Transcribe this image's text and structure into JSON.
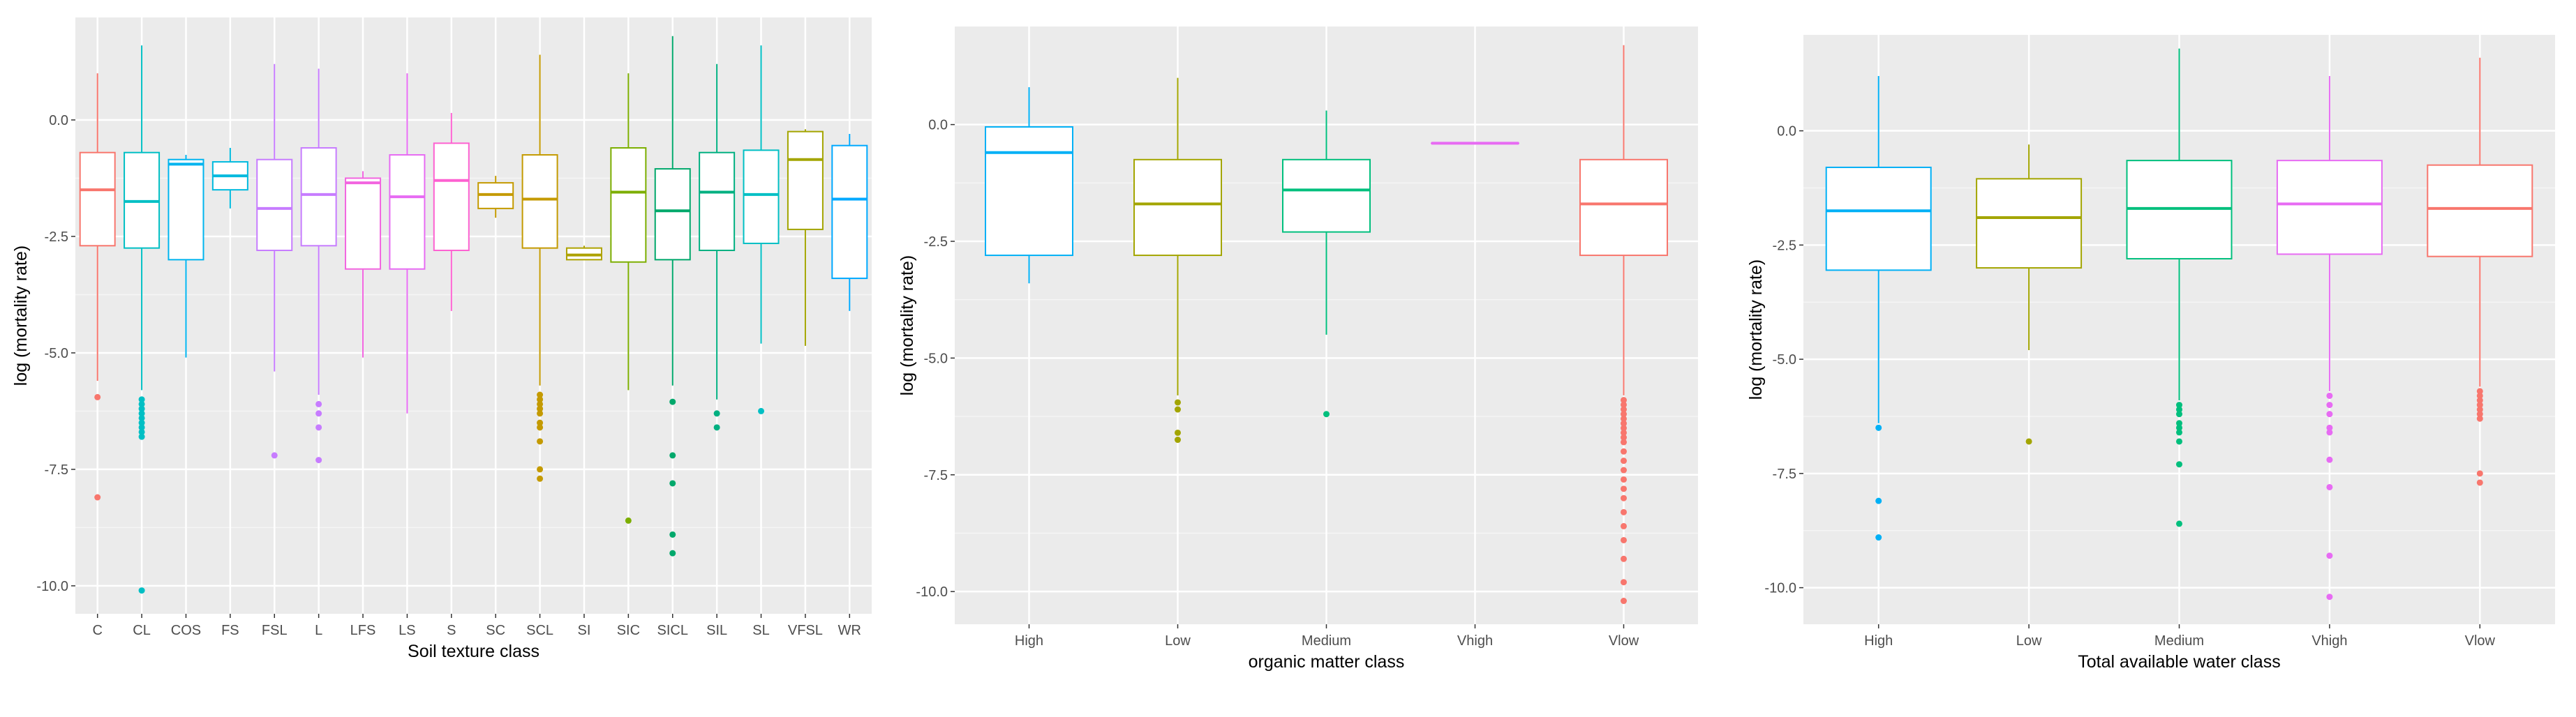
{
  "chart_data": [
    {
      "type": "boxplot",
      "xlabel": "Soil texture class",
      "ylabel": "log (mortality rate)",
      "ylim": [
        -10.6,
        2.2
      ],
      "yticks": [
        0.0,
        -2.5,
        -5.0,
        -7.5,
        -10.0
      ],
      "ytick_labels": [
        "0.0",
        "-2.5",
        "-5.0",
        "-7.5",
        "-10.0"
      ],
      "grid": true,
      "legend": "none",
      "categories": [
        "C",
        "CL",
        "COS",
        "FS",
        "FSL",
        "L",
        "LFS",
        "LS",
        "S",
        "SC",
        "SCL",
        "SI",
        "SIC",
        "SICL",
        "SIL",
        "SL",
        "VFSL",
        "WR"
      ],
      "colors": [
        "#F8766D",
        "#00BFC4",
        "#00B4EF",
        "#00BADE",
        "#C77CFF",
        "#C77CFF",
        "#F265E0",
        "#E76BF3",
        "#FD61D1",
        "#C49A00",
        "#C49A00",
        "#AEA200",
        "#7CAE00",
        "#00A86B",
        "#00B081",
        "#00BFC4",
        "#A3A500",
        "#00A9FF"
      ],
      "boxes": [
        {
          "category": "C",
          "q1": -2.7,
          "median": -1.5,
          "q3": -0.7,
          "whisker_low": -5.6,
          "whisker_high": 1.0,
          "outliers": [
            -5.95,
            -8.1
          ]
        },
        {
          "category": "CL",
          "q1": -2.75,
          "median": -1.75,
          "q3": -0.7,
          "whisker_low": -5.8,
          "whisker_high": 1.6,
          "outliers": [
            -6.0,
            -6.1,
            -6.2,
            -6.3,
            -6.4,
            -6.5,
            -6.6,
            -6.7,
            -6.8,
            -10.1
          ]
        },
        {
          "category": "COS",
          "q1": -3.0,
          "median": -0.95,
          "q3": -0.85,
          "whisker_low": -5.1,
          "whisker_high": -0.75,
          "outliers": []
        },
        {
          "category": "FS",
          "q1": -1.5,
          "median": -1.2,
          "q3": -0.9,
          "whisker_low": -1.9,
          "whisker_high": -0.6,
          "outliers": []
        },
        {
          "category": "FSL",
          "q1": -2.8,
          "median": -1.9,
          "q3": -0.85,
          "whisker_low": -5.4,
          "whisker_high": 1.2,
          "outliers": [
            -7.2
          ]
        },
        {
          "category": "L",
          "q1": -2.7,
          "median": -1.6,
          "q3": -0.6,
          "whisker_low": -5.9,
          "whisker_high": 1.1,
          "outliers": [
            -6.1,
            -6.3,
            -6.6,
            -7.3
          ]
        },
        {
          "category": "LFS",
          "q1": -3.2,
          "median": -1.35,
          "q3": -1.25,
          "whisker_low": -5.1,
          "whisker_high": -1.1,
          "outliers": []
        },
        {
          "category": "LS",
          "q1": -3.2,
          "median": -1.65,
          "q3": -0.75,
          "whisker_low": -6.3,
          "whisker_high": 1.0,
          "outliers": []
        },
        {
          "category": "S",
          "q1": -2.8,
          "median": -1.3,
          "q3": -0.5,
          "whisker_low": -4.1,
          "whisker_high": 0.15,
          "outliers": []
        },
        {
          "category": "SC",
          "q1": -1.9,
          "median": -1.6,
          "q3": -1.35,
          "whisker_low": -2.1,
          "whisker_high": -1.2,
          "outliers": []
        },
        {
          "category": "SCL",
          "q1": -2.75,
          "median": -1.7,
          "q3": -0.75,
          "whisker_low": -5.7,
          "whisker_high": 1.4,
          "outliers": [
            -5.9,
            -6.0,
            -6.1,
            -6.2,
            -6.3,
            -6.5,
            -6.6,
            -6.9,
            -7.5,
            -7.7
          ]
        },
        {
          "category": "SI",
          "q1": -3.0,
          "median": -2.9,
          "q3": -2.75,
          "whisker_low": -3.0,
          "whisker_high": -2.7,
          "outliers": []
        },
        {
          "category": "SIC",
          "q1": -3.05,
          "median": -1.55,
          "q3": -0.6,
          "whisker_low": -5.8,
          "whisker_high": 1.0,
          "outliers": [
            -8.6
          ]
        },
        {
          "category": "SICL",
          "q1": -3.0,
          "median": -1.95,
          "q3": -1.05,
          "whisker_low": -5.7,
          "whisker_high": 1.8,
          "outliers": [
            -6.05,
            -7.2,
            -7.8,
            -8.9,
            -9.3
          ]
        },
        {
          "category": "SIL",
          "q1": -2.8,
          "median": -1.55,
          "q3": -0.7,
          "whisker_low": -6.0,
          "whisker_high": 1.2,
          "outliers": [
            -6.3,
            -6.6
          ]
        },
        {
          "category": "SL",
          "q1": -2.65,
          "median": -1.6,
          "q3": -0.65,
          "whisker_low": -4.8,
          "whisker_high": 1.6,
          "outliers": [
            -6.25
          ]
        },
        {
          "category": "VFSL",
          "q1": -2.35,
          "median": -0.85,
          "q3": -0.25,
          "whisker_low": -4.85,
          "whisker_high": -0.2,
          "outliers": []
        },
        {
          "category": "WR",
          "q1": -3.4,
          "median": -1.7,
          "q3": -0.55,
          "whisker_low": -4.1,
          "whisker_high": -0.3,
          "outliers": []
        }
      ]
    },
    {
      "type": "boxplot",
      "xlabel": "organic matter class",
      "ylabel": "log (mortality rate)",
      "ylim": [
        -10.7,
        2.1
      ],
      "yticks": [
        0.0,
        -2.5,
        -5.0,
        -7.5,
        -10.0
      ],
      "ytick_labels": [
        "0.0",
        "-2.5",
        "-5.0",
        "-7.5",
        "-10.0"
      ],
      "grid": true,
      "legend": "none",
      "categories": [
        "High",
        "Low",
        "Medium",
        "Vhigh",
        "Vlow"
      ],
      "colors": [
        "#00B0F6",
        "#A3A500",
        "#00BF7D",
        "#E76BF3",
        "#F8766D"
      ],
      "boxes": [
        {
          "category": "High",
          "q1": -2.8,
          "median": -0.6,
          "q3": -0.05,
          "whisker_low": -3.4,
          "whisker_high": 0.8,
          "outliers": []
        },
        {
          "category": "Low",
          "q1": -2.8,
          "median": -1.7,
          "q3": -0.75,
          "whisker_low": -5.8,
          "whisker_high": 1.0,
          "outliers": [
            -5.95,
            -6.1,
            -6.6,
            -6.75
          ]
        },
        {
          "category": "Medium",
          "q1": -2.3,
          "median": -1.4,
          "q3": -0.75,
          "whisker_low": -4.5,
          "whisker_high": 0.3,
          "outliers": [
            -6.2
          ]
        },
        {
          "category": "Vhigh",
          "q1": -0.4,
          "median": -0.4,
          "q3": -0.4,
          "whisker_low": -0.4,
          "whisker_high": -0.4,
          "outliers": []
        },
        {
          "category": "Vlow",
          "q1": -2.8,
          "median": -1.7,
          "q3": -0.75,
          "whisker_low": -5.8,
          "whisker_high": 1.7,
          "outliers": [
            -5.9,
            -6.0,
            -6.1,
            -6.2,
            -6.3,
            -6.4,
            -6.5,
            -6.6,
            -6.7,
            -6.8,
            -7.0,
            -7.2,
            -7.4,
            -7.6,
            -7.8,
            -8.0,
            -8.3,
            -8.6,
            -8.9,
            -9.3,
            -9.8,
            -10.2
          ]
        }
      ]
    },
    {
      "type": "boxplot",
      "xlabel": "Total available water class",
      "ylabel": "log (mortality rate)",
      "ylim": [
        -10.8,
        2.1
      ],
      "yticks": [
        0.0,
        -2.5,
        -5.0,
        -7.5,
        -10.0
      ],
      "ytick_labels": [
        "0.0",
        "-2.5",
        "-5.0",
        "-7.5",
        "-10.0"
      ],
      "grid": true,
      "legend": "none",
      "categories": [
        "High",
        "Low",
        "Medium",
        "Vhigh",
        "Vlow"
      ],
      "colors": [
        "#00B0F6",
        "#A3A500",
        "#00BF7D",
        "#E76BF3",
        "#F8766D"
      ],
      "boxes": [
        {
          "category": "High",
          "q1": -3.05,
          "median": -1.75,
          "q3": -0.8,
          "whisker_low": -6.4,
          "whisker_high": 1.2,
          "outliers": [
            -6.5,
            -8.1,
            -8.9
          ]
        },
        {
          "category": "Low",
          "q1": -3.0,
          "median": -1.9,
          "q3": -1.05,
          "whisker_low": -4.8,
          "whisker_high": -0.3,
          "outliers": [
            -6.8
          ]
        },
        {
          "category": "Medium",
          "q1": -2.8,
          "median": -1.7,
          "q3": -0.65,
          "whisker_low": -5.9,
          "whisker_high": 1.8,
          "outliers": [
            -6.0,
            -6.1,
            -6.2,
            -6.4,
            -6.5,
            -6.6,
            -6.8,
            -7.3,
            -8.6
          ]
        },
        {
          "category": "Vhigh",
          "q1": -2.7,
          "median": -1.6,
          "q3": -0.65,
          "whisker_low": -5.7,
          "whisker_high": 1.2,
          "outliers": [
            -5.8,
            -6.0,
            -6.2,
            -6.5,
            -6.6,
            -7.2,
            -7.8,
            -9.3,
            -10.2
          ]
        },
        {
          "category": "Vlow",
          "q1": -2.75,
          "median": -1.7,
          "q3": -0.75,
          "whisker_low": -5.6,
          "whisker_high": 1.6,
          "outliers": [
            -5.7,
            -5.8,
            -5.9,
            -6.0,
            -6.1,
            -6.2,
            -6.3,
            -7.5,
            -7.7
          ]
        }
      ]
    }
  ]
}
